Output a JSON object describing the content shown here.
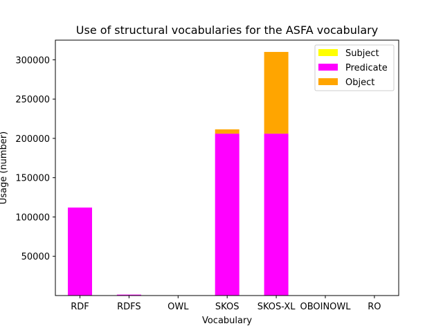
{
  "chart_data": {
    "type": "bar",
    "stacked": true,
    "title": "Use of structural vocabularies for the ASFA vocabulary",
    "xlabel": "Vocabulary",
    "ylabel": "Usage (number)",
    "categories": [
      "RDF",
      "RDFS",
      "OWL",
      "SKOS",
      "SKOS-XL",
      "OBOINOWL",
      "RO"
    ],
    "series": [
      {
        "name": "Subject",
        "color": "#ffff00",
        "values": [
          0,
          0,
          0,
          0,
          0,
          0,
          0
        ]
      },
      {
        "name": "Predicate",
        "color": "#ff00ff",
        "values": [
          112000,
          1200,
          0,
          206000,
          206000,
          0,
          0
        ]
      },
      {
        "name": "Object",
        "color": "#ffa500",
        "values": [
          0,
          0,
          0,
          5500,
          104000,
          0,
          0
        ]
      }
    ],
    "ylim": [
      0,
      325000
    ],
    "yticks": [
      50000,
      100000,
      150000,
      200000,
      250000,
      300000
    ],
    "grid": false,
    "legend_position": "top-right"
  }
}
